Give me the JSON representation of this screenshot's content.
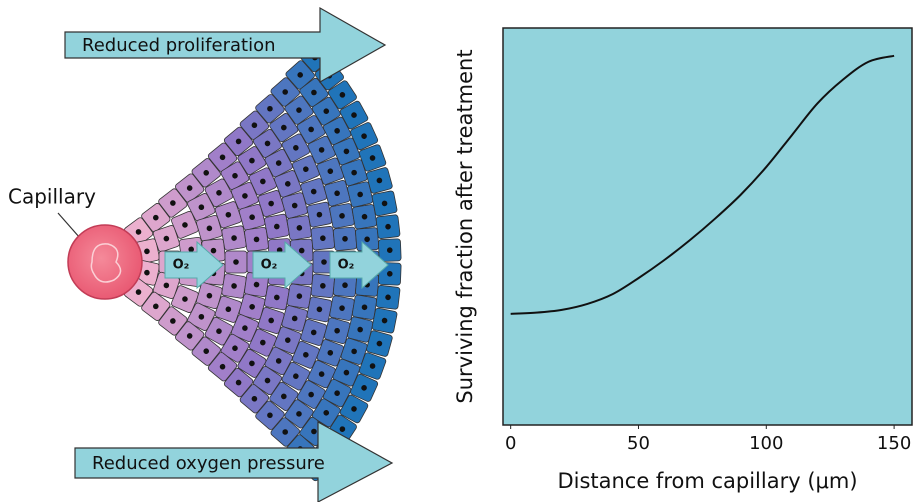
{
  "diagram": {
    "top_arrow": "Reduced proliferation",
    "bottom_arrow": "Reduced oxygen pressure",
    "capillary": "Capillary",
    "oxygen_labels": [
      "O₂",
      "O₂",
      "O₂"
    ]
  },
  "chart_data": {
    "type": "line",
    "xlabel": "Distance from capillary (μm)",
    "ylabel": "Surviving fraction after treatment",
    "x": [
      0,
      10,
      20,
      30,
      40,
      50,
      60,
      70,
      80,
      90,
      100,
      110,
      120,
      130,
      140,
      150
    ],
    "series": [
      {
        "color": "#111111",
        "values": [
          0.28,
          0.283,
          0.29,
          0.305,
          0.33,
          0.37,
          0.415,
          0.465,
          0.52,
          0.58,
          0.65,
          0.73,
          0.81,
          0.87,
          0.915,
          0.93
        ]
      }
    ],
    "xlim": [
      -3,
      157
    ],
    "ylim": [
      0,
      1
    ],
    "xticks": [
      0,
      50,
      100,
      150
    ],
    "background": "#92d3dc"
  }
}
